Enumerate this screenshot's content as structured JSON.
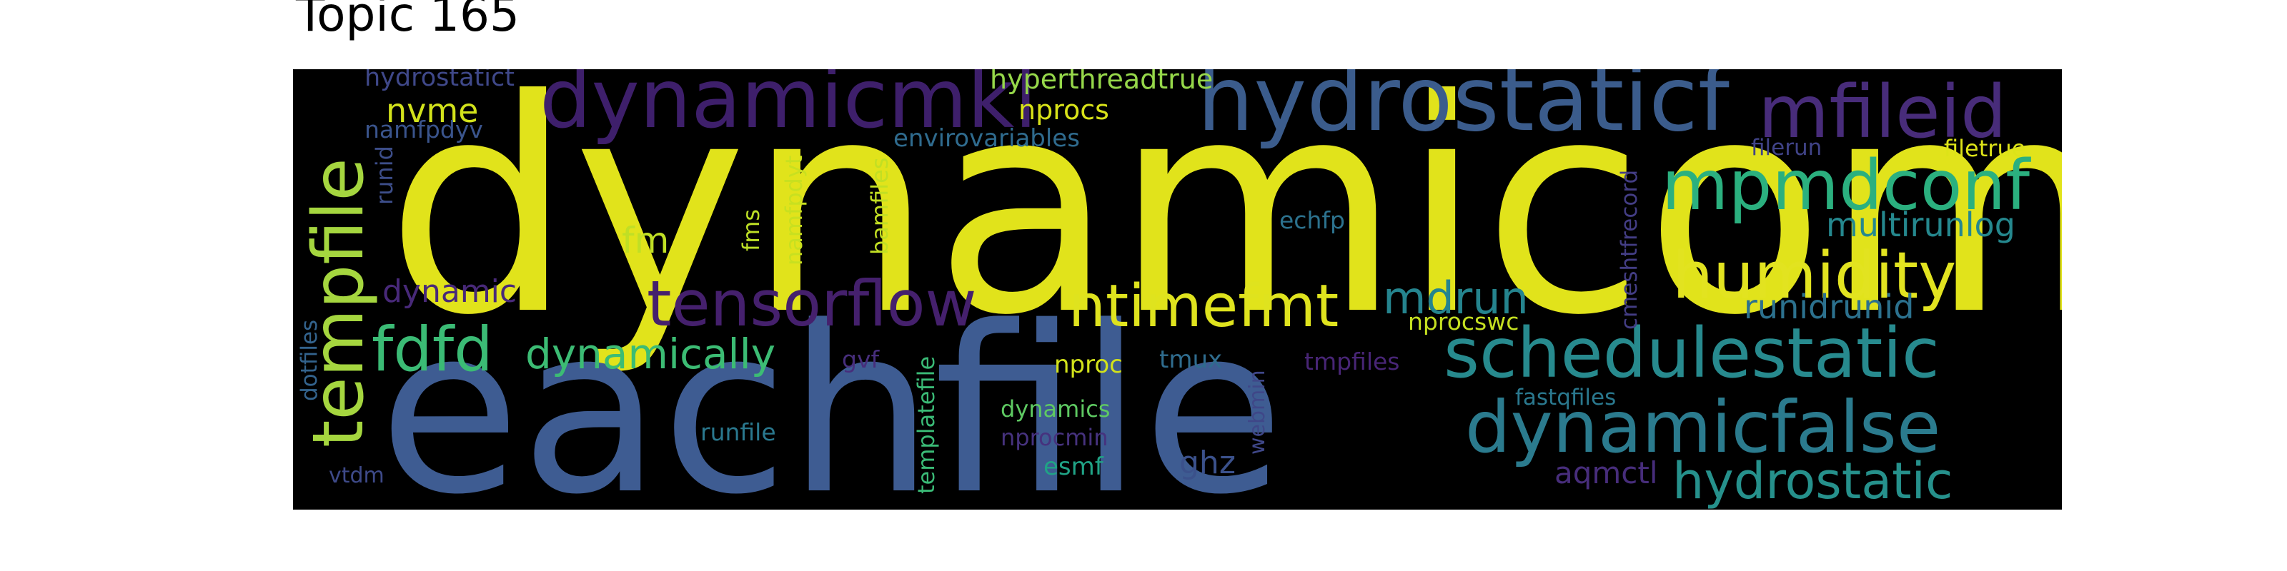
{
  "title": "Topic 165",
  "words": [
    {
      "text": "dynamicomp",
      "color": "#e1e31b"
    },
    {
      "text": "eachfile",
      "color": "#3e5c92"
    },
    {
      "text": "hydrostaticf",
      "color": "#3b5c8c"
    },
    {
      "text": "dynamicmkl",
      "color": "#3e1f6b"
    },
    {
      "text": "mfileid",
      "color": "#482c7a"
    },
    {
      "text": "mpmdconf",
      "color": "#2bb07f"
    },
    {
      "text": "humidity",
      "color": "#e2e320"
    },
    {
      "text": "tempfile",
      "color": "#a5d63f"
    },
    {
      "text": "tensorflow",
      "color": "#45206d"
    },
    {
      "text": "ntimefmt",
      "color": "#dfe31e"
    },
    {
      "text": "schedulestatic",
      "color": "#278a8e"
    },
    {
      "text": "dynamicfalse",
      "color": "#2b7b8e"
    },
    {
      "text": "hydrostatic",
      "color": "#26918c"
    },
    {
      "text": "fdfd",
      "color": "#3bbb75"
    },
    {
      "text": "dynamically",
      "color": "#3cbc74"
    },
    {
      "text": "multirunlog",
      "color": "#25888e"
    },
    {
      "text": "runidrunid",
      "color": "#2c718e"
    },
    {
      "text": "mdrun",
      "color": "#25848e"
    },
    {
      "text": "nvme",
      "color": "#d2e21b"
    },
    {
      "text": "hyperthreadtrue",
      "color": "#96d84a"
    },
    {
      "text": "nprocs",
      "color": "#d8e219"
    },
    {
      "text": "envirovariables",
      "color": "#2f6b8e"
    },
    {
      "text": "hydrostatict",
      "color": "#3f4889"
    },
    {
      "text": "namfpdyv",
      "color": "#3a548c"
    },
    {
      "text": "runid",
      "color": "#3d4e8a"
    },
    {
      "text": "fm",
      "color": "#c0df25"
    },
    {
      "text": "fms",
      "color": "#bddf26"
    },
    {
      "text": "namfpdyt",
      "color": "#c8e020"
    },
    {
      "text": "bamfiles",
      "color": "#c2df23"
    },
    {
      "text": "echfp",
      "color": "#2c728e"
    },
    {
      "text": "filerun",
      "color": "#404387"
    },
    {
      "text": "filetrue",
      "color": "#dde318"
    },
    {
      "text": "cmeshtfrecord",
      "color": "#433d84"
    },
    {
      "text": "dynamic",
      "color": "#482979"
    },
    {
      "text": "nprocswc",
      "color": "#c5e021"
    },
    {
      "text": "dotfiles",
      "color": "#33638d"
    },
    {
      "text": "gvf",
      "color": "#472e7c"
    },
    {
      "text": "templatefile",
      "color": "#3aba76"
    },
    {
      "text": "nproc",
      "color": "#d2e21b"
    },
    {
      "text": "tmux",
      "color": "#2f6c8e"
    },
    {
      "text": "webmin",
      "color": "#3f4788"
    },
    {
      "text": "tmpfiles",
      "color": "#482576"
    },
    {
      "text": "fastqfiles",
      "color": "#2a788e"
    },
    {
      "text": "dynamics",
      "color": "#5ec962"
    },
    {
      "text": "nprocmin",
      "color": "#46327e"
    },
    {
      "text": "runfile",
      "color": "#2a788e"
    },
    {
      "text": "esmf",
      "color": "#20a386"
    },
    {
      "text": "ghz",
      "color": "#3b518b"
    },
    {
      "text": "aqmctl",
      "color": "#472d7b"
    },
    {
      "text": "vtdm",
      "color": "#3e4a89"
    }
  ]
}
